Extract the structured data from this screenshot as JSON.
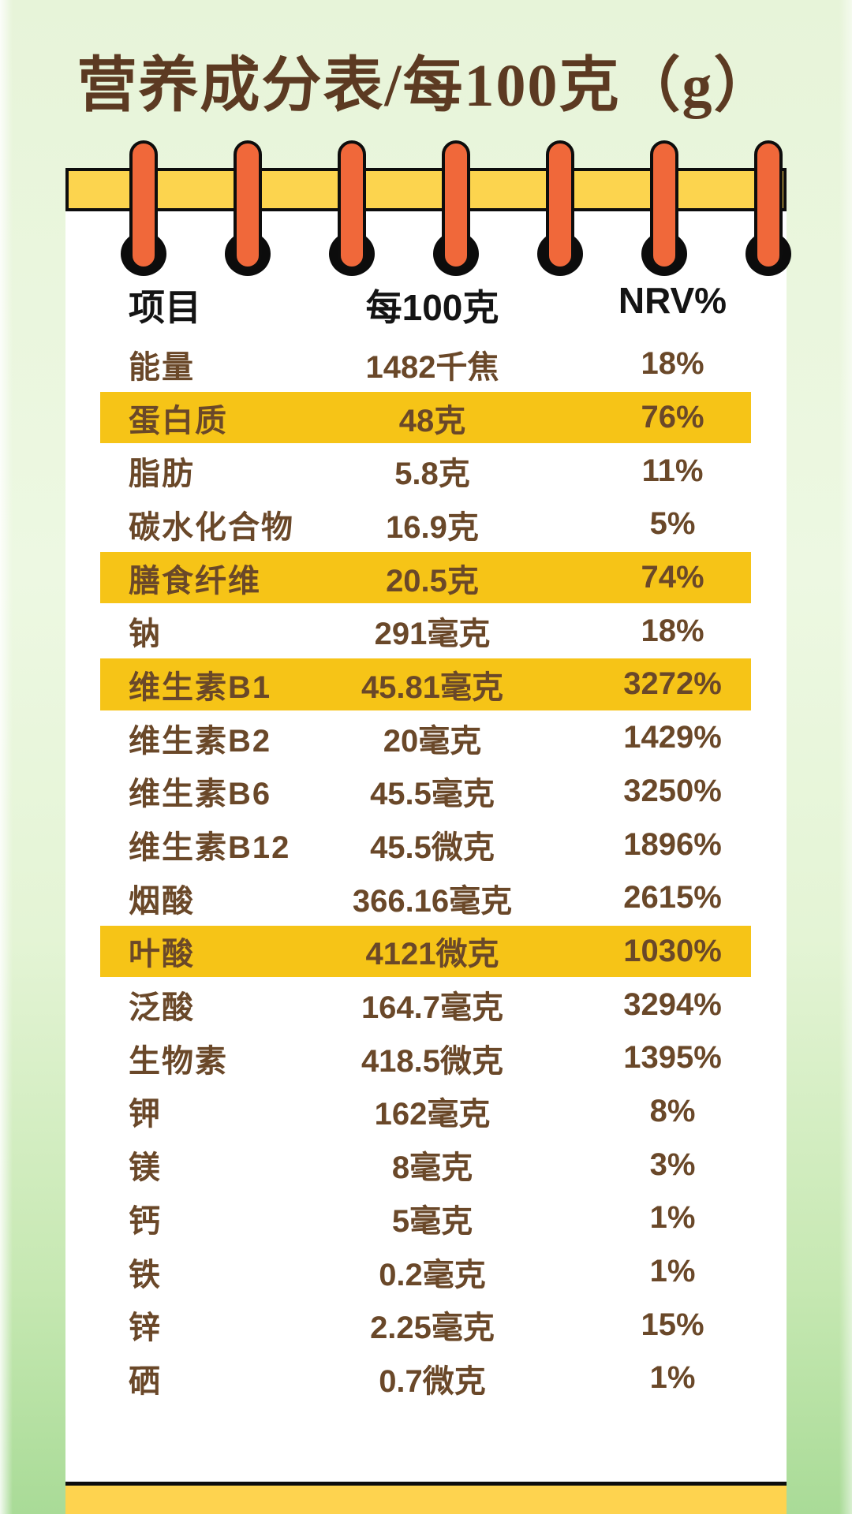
{
  "page": {
    "title": "营养成分表/每100克（g）"
  },
  "table": {
    "headers": {
      "item": "项目",
      "per100g": "每100克",
      "nrv": "NRV%"
    },
    "rows": [
      {
        "label": "能量",
        "value": "1482千焦",
        "nrv": "18%",
        "highlight": false
      },
      {
        "label": "蛋白质",
        "value": "48克",
        "nrv": "76%",
        "highlight": true
      },
      {
        "label": "脂肪",
        "value": "5.8克",
        "nrv": "11%",
        "highlight": false
      },
      {
        "label": "碳水化合物",
        "value": "16.9克",
        "nrv": "5%",
        "highlight": false
      },
      {
        "label": "膳食纤维",
        "value": "20.5克",
        "nrv": "74%",
        "highlight": true
      },
      {
        "label": "钠",
        "value": "291毫克",
        "nrv": "18%",
        "highlight": false
      },
      {
        "label": "维生素B1",
        "value": "45.81毫克",
        "nrv": "3272%",
        "highlight": true
      },
      {
        "label": "维生素B2",
        "value": "20毫克",
        "nrv": "1429%",
        "highlight": false
      },
      {
        "label": "维生素B6",
        "value": "45.5毫克",
        "nrv": "3250%",
        "highlight": false
      },
      {
        "label": "维生素B12",
        "value": "45.5微克",
        "nrv": "1896%",
        "highlight": false
      },
      {
        "label": "烟酸",
        "value": "366.16毫克",
        "nrv": "2615%",
        "highlight": false
      },
      {
        "label": "叶酸",
        "value": "4121微克",
        "nrv": "1030%",
        "highlight": true
      },
      {
        "label": "泛酸",
        "value": "164.7毫克",
        "nrv": "3294%",
        "highlight": false
      },
      {
        "label": "生物素",
        "value": "418.5微克",
        "nrv": "1395%",
        "highlight": false
      },
      {
        "label": "钾",
        "value": "162毫克",
        "nrv": "8%",
        "highlight": false
      },
      {
        "label": "镁",
        "value": "8毫克",
        "nrv": "3%",
        "highlight": false
      },
      {
        "label": "钙",
        "value": "5毫克",
        "nrv": "1%",
        "highlight": false
      },
      {
        "label": "铁",
        "value": "0.2毫克",
        "nrv": "1%",
        "highlight": false
      },
      {
        "label": "锌",
        "value": "2.25毫克",
        "nrv": "15%",
        "highlight": false
      },
      {
        "label": "硒",
        "value": "0.7微克",
        "nrv": "1%",
        "highlight": false
      }
    ]
  },
  "binder": {
    "pin_count": 7
  },
  "colors": {
    "highlight_yellow": "#f6c417",
    "band_yellow": "#fcd44e",
    "pin_orange": "#f0683a",
    "row_text_brown": "#6a4829",
    "title_brown": "#5c3a22",
    "background_green_top": "#e7f4d9",
    "background_green_bottom": "#a9db97"
  }
}
